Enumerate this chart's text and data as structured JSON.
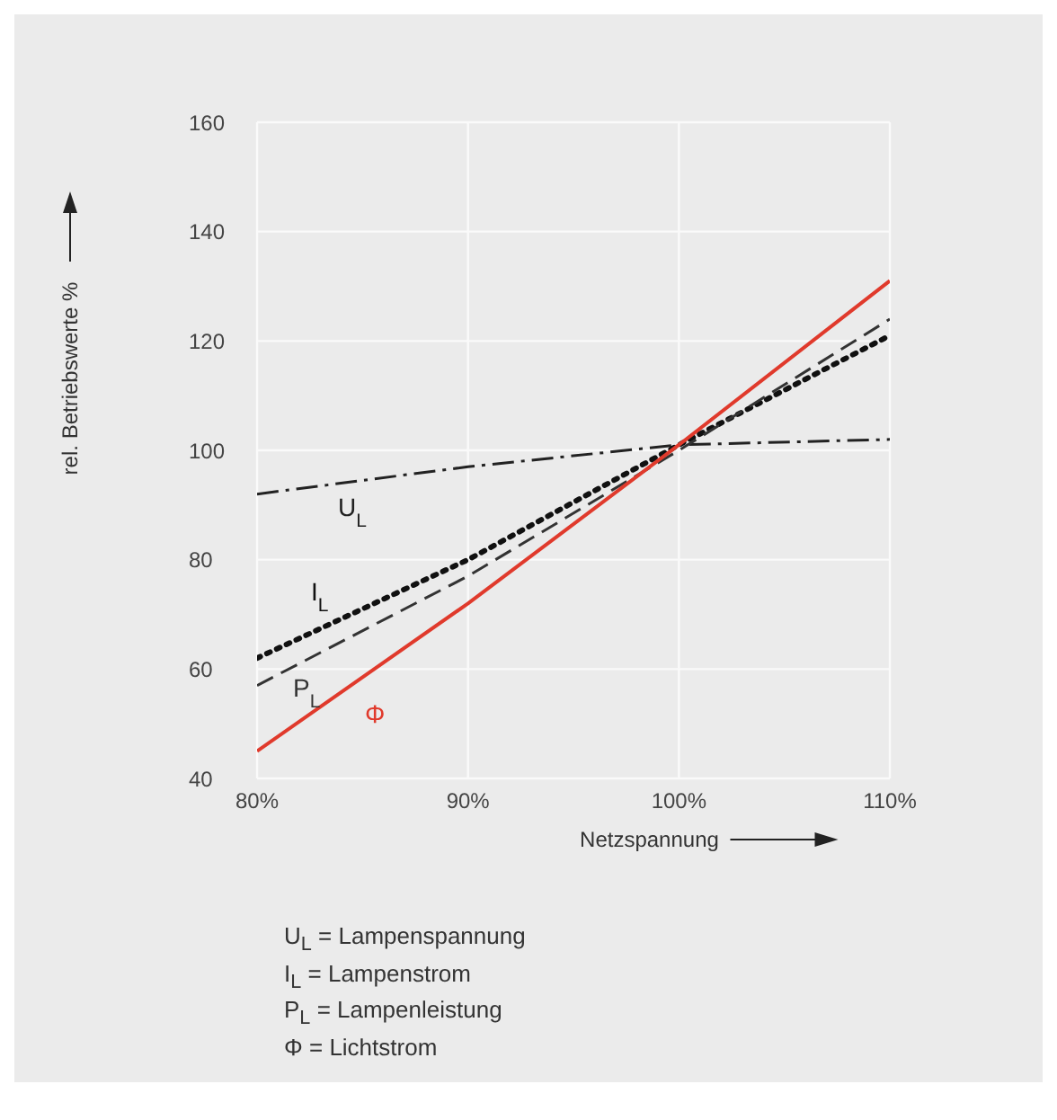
{
  "chart_data": {
    "type": "line",
    "xlabel": "Netzspannung",
    "ylabel": "rel. Betriebswerte %",
    "x": [
      80,
      90,
      100,
      110
    ],
    "series": [
      {
        "name": "U$_{L}$",
        "color": "#222222",
        "line_style": "dashdot",
        "values": [
          92,
          97,
          101,
          102
        ]
      },
      {
        "name": "I$_{L}$",
        "color": "#111111",
        "line_style": "dotted",
        "values": [
          62,
          80,
          101,
          121
        ]
      },
      {
        "name": "P$_{L}$",
        "color": "#333333",
        "line_style": "dashed",
        "values": [
          57,
          77,
          100,
          124
        ]
      },
      {
        "name": "Φ",
        "color": "#e03a2c",
        "line_style": "solid",
        "values": [
          45,
          72,
          101,
          131
        ]
      }
    ],
    "xlim": [
      80,
      110
    ],
    "xticks": [
      {
        "value": 80,
        "label": "80%"
      },
      {
        "value": 90,
        "label": "90%"
      },
      {
        "value": 100,
        "label": "100%"
      },
      {
        "value": 110,
        "label": "110%"
      }
    ],
    "ylim": [
      40,
      160
    ],
    "yticks": [
      40,
      60,
      80,
      100,
      120,
      140,
      160
    ],
    "grid": true,
    "legend": false,
    "marker": "none",
    "annotations": [
      "U$_{L}$ = Lampenspannung",
      "I$_{L}$ = Lampenstrom",
      "P$_{L}$ = Lampenleistung",
      "Φ = Lichtstrom"
    ]
  }
}
